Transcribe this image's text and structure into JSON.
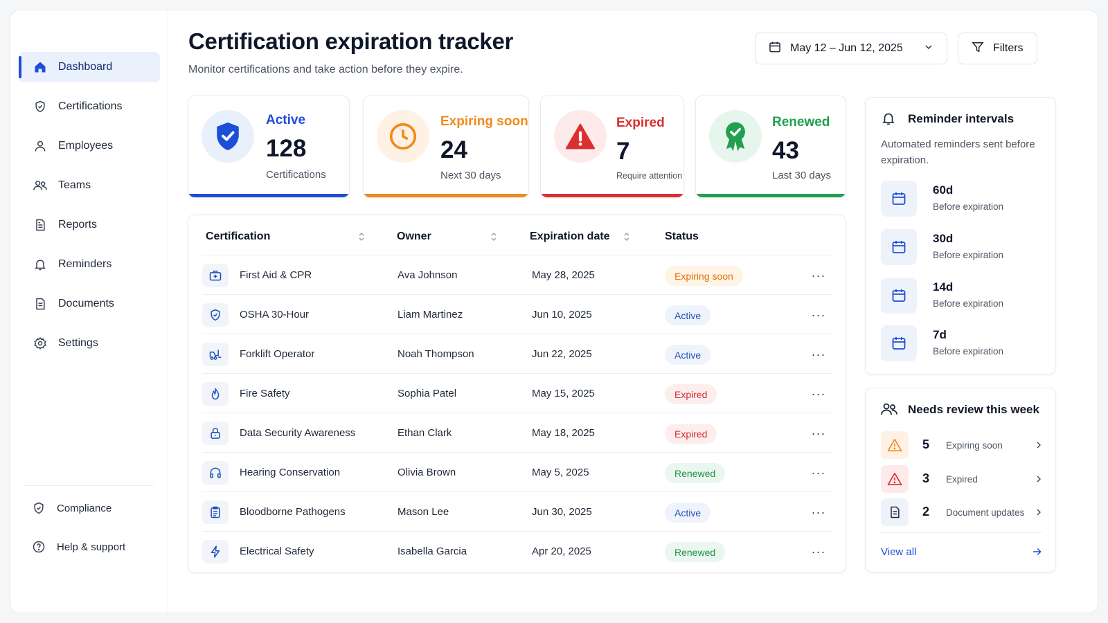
{
  "sidebar": {
    "items": [
      {
        "label": "Dashboard"
      },
      {
        "label": "Certifications"
      },
      {
        "label": "Employees"
      },
      {
        "label": "Teams"
      },
      {
        "label": "Reports"
      },
      {
        "label": "Reminders"
      },
      {
        "label": "Documents"
      },
      {
        "label": "Settings"
      }
    ],
    "bottom": [
      {
        "label": "Compliance"
      },
      {
        "label": "Help & support"
      }
    ]
  },
  "header": {
    "title": "Certification expiration tracker",
    "subtitle": "Monitor certifications and take action before they expire.",
    "date_range": "May 12 – Jun 12, 2025",
    "filters_label": "Filters"
  },
  "stats": {
    "active": {
      "title": "Active",
      "value": "128",
      "caption": "Certifications"
    },
    "expiring": {
      "title": "Expiring soon",
      "value": "24",
      "caption": "Next 30 days"
    },
    "expired": {
      "title": "Expired",
      "value": "7",
      "caption": "Require attention"
    },
    "renewed": {
      "title": "Renewed",
      "value": "43",
      "caption": "Last 30 days"
    }
  },
  "table": {
    "headers": {
      "certification": "Certification",
      "owner": "Owner",
      "expiration": "Expiration date",
      "status": "Status"
    },
    "rows": [
      {
        "name": "First Aid & CPR",
        "owner": "Ava Johnson",
        "date": "May 28, 2025",
        "status": "Expiring soon"
      },
      {
        "name": "OSHA 30-Hour",
        "owner": "Liam Martinez",
        "date": "Jun 10, 2025",
        "status": "Active"
      },
      {
        "name": "Forklift Operator",
        "owner": "Noah Thompson",
        "date": "Jun 22, 2025",
        "status": "Active"
      },
      {
        "name": "Fire Safety",
        "owner": "Sophia Patel",
        "date": "May 15, 2025",
        "status": "Expired"
      },
      {
        "name": "Data Security Awareness",
        "owner": "Ethan Clark",
        "date": "May 18, 2025",
        "status": "Expired"
      },
      {
        "name": "Hearing Conservation",
        "owner": "Olivia Brown",
        "date": "May 5, 2025",
        "status": "Renewed"
      },
      {
        "name": "Bloodborne Pathogens",
        "owner": "Mason Lee",
        "date": "Jun 30, 2025",
        "status": "Active"
      },
      {
        "name": "Electrical Safety",
        "owner": "Isabella Garcia",
        "date": "Apr 20, 2025",
        "status": "Renewed"
      }
    ]
  },
  "reminders": {
    "title": "Reminder intervals",
    "description": "Automated reminders sent before expiration.",
    "items": [
      {
        "days": "60d",
        "text": "Before expiration"
      },
      {
        "days": "30d",
        "text": "Before expiration"
      },
      {
        "days": "14d",
        "text": "Before expiration"
      },
      {
        "days": "7d",
        "text": "Before expiration"
      }
    ]
  },
  "review": {
    "title": "Needs review this week",
    "items": [
      {
        "count": "5",
        "label": "Expiring soon"
      },
      {
        "count": "3",
        "label": "Expired"
      },
      {
        "count": "2",
        "label": "Document updates"
      }
    ],
    "view_all": "View all"
  },
  "colors": {
    "accent": "#1d4ed8",
    "expiring": "#f08a1c",
    "expired": "#dc2f2f",
    "renewed": "#22a050"
  }
}
